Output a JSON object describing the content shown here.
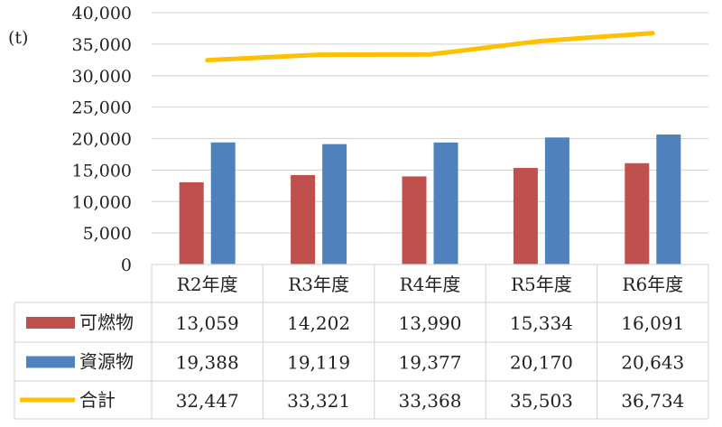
{
  "chart_data": {
    "type": "bar",
    "unit_label": "(t)",
    "categories": [
      "R2年度",
      "R3年度",
      "R4年度",
      "R5年度",
      "R6年度"
    ],
    "ylim": [
      0,
      40000
    ],
    "yticks": [
      0,
      5000,
      10000,
      15000,
      20000,
      25000,
      30000,
      35000,
      40000
    ],
    "ytick_labels": [
      "0",
      "5,000",
      "10,000",
      "15,000",
      "20,000",
      "25,000",
      "30,000",
      "35,000",
      "40,000"
    ],
    "grid": true,
    "legend_placement": "data-table",
    "series": [
      {
        "name": "可燃物",
        "type": "bar",
        "color": "#c0504d",
        "values": [
          13059,
          14202,
          13990,
          15334,
          16091
        ],
        "value_labels": [
          "13,059",
          "14,202",
          "13,990",
          "15,334",
          "16,091"
        ]
      },
      {
        "name": "資源物",
        "type": "bar",
        "color": "#4f81bd",
        "values": [
          19388,
          19119,
          19377,
          20170,
          20643
        ],
        "value_labels": [
          "19,388",
          "19,119",
          "19,377",
          "20,170",
          "20,643"
        ]
      },
      {
        "name": "合計",
        "type": "line",
        "color": "#ffc000",
        "values": [
          32447,
          33321,
          33368,
          35503,
          36734
        ],
        "value_labels": [
          "32,447",
          "33,321",
          "33,368",
          "35,503",
          "36,734"
        ]
      }
    ]
  }
}
